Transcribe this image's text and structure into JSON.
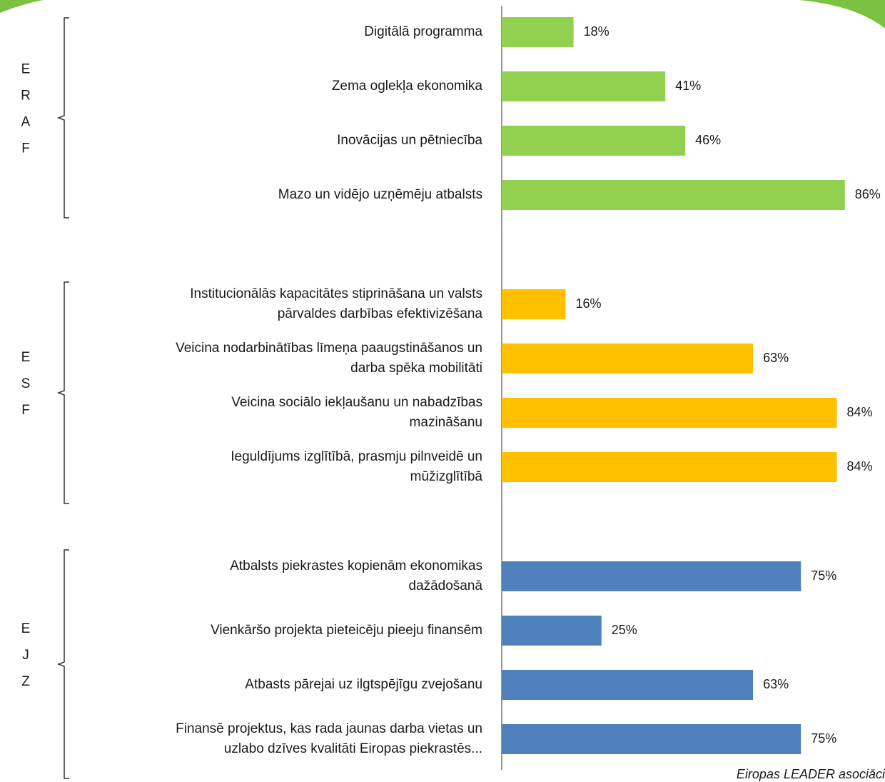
{
  "chart_data": {
    "type": "bar",
    "orientation": "horizontal",
    "groups": [
      {
        "label": [
          "E",
          "R",
          "A",
          "F"
        ],
        "color": "#92d050",
        "categories": [
          [
            "Digitālā programma"
          ],
          [
            "Zema oglekļa ekonomika"
          ],
          [
            "Inovācijas un pētniecība"
          ],
          [
            "Mazo un vidējo uzņēmēju atbalsts"
          ]
        ],
        "values": [
          18,
          41,
          46,
          86
        ],
        "value_labels": [
          "18%",
          "41%",
          "46%",
          "86%"
        ]
      },
      {
        "label": [
          "E",
          "S",
          "F"
        ],
        "color": "#ffc000",
        "categories": [
          [
            "Institucionālās kapacitātes stiprināšana un valsts",
            "pārvaldes darbības efektivizēšana"
          ],
          [
            "Veicina nodarbinātības līmeņa paaugstināšanos un",
            "darba spēka mobilitāti"
          ],
          [
            "Veicina sociālo iekļaušanu un nabadzības",
            "mazināšanu"
          ],
          [
            "Ieguldījums izglītībā, prasmju pilnveidē un",
            "mūžizglītībā"
          ]
        ],
        "values": [
          16,
          63,
          84,
          84
        ],
        "value_labels": [
          "16%",
          "63%",
          "84%",
          "84%"
        ]
      },
      {
        "label": [
          "E",
          "J",
          "Z"
        ],
        "color": "#4f81bd",
        "categories": [
          [
            "Atbalsts piekrastes kopienām ekonomikas",
            "dažādošanā"
          ],
          [
            "Vienkāršo projekta pieteicēju pieeju finansēm"
          ],
          [
            "Atbasts pārejai uz ilgtspējīgu zvejošanu"
          ],
          [
            "Finansē projektus, kas rada jaunas darba vietas un",
            "uzlabo dzīves kvalitāti Eiropas piekrastēs..."
          ]
        ],
        "values": [
          75,
          25,
          63,
          75
        ],
        "value_labels": [
          "75%",
          "25%",
          "63%",
          "75%"
        ]
      }
    ],
    "source": "Eiropas LEADER asociāci"
  }
}
